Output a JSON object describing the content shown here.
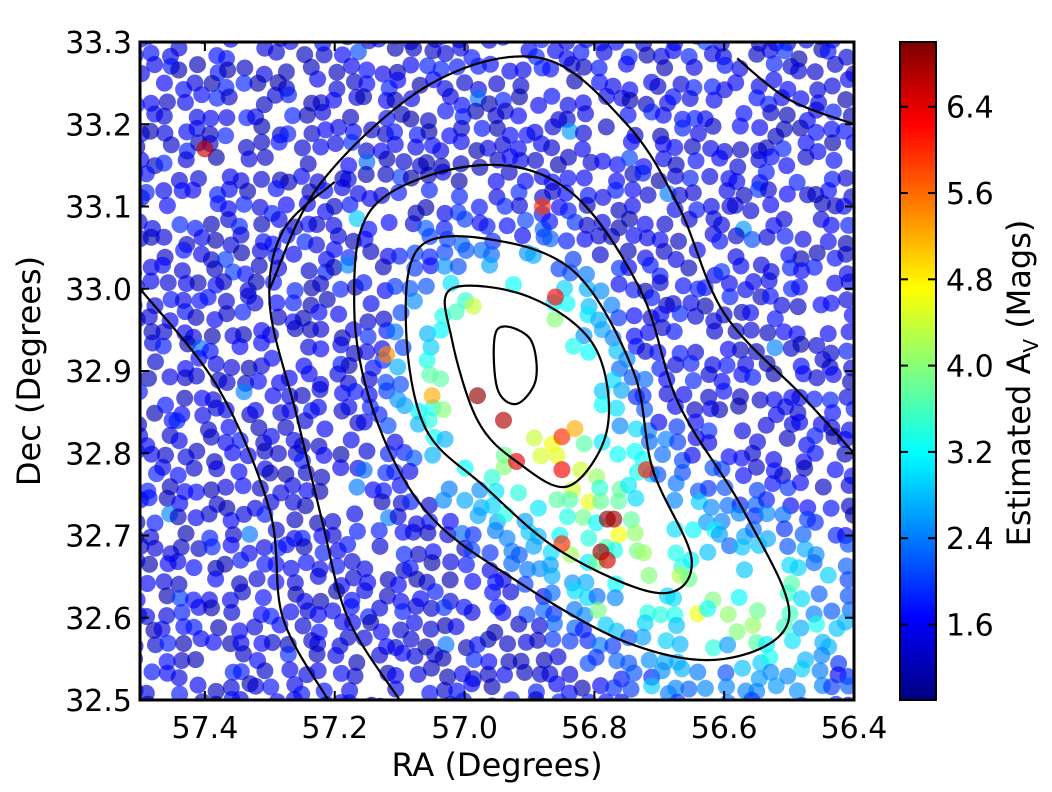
{
  "chart_data": {
    "type": "scatter",
    "title": "",
    "xlabel": "RA (Degrees)",
    "ylabel": "Dec (Degrees)",
    "xlim": [
      57.5,
      56.4
    ],
    "ylim": [
      32.5,
      33.3
    ],
    "x_inverted": true,
    "xticks": [
      "57.4",
      "57.2",
      "57.0",
      "56.8",
      "56.6",
      "56.4"
    ],
    "xtick_values": [
      57.4,
      57.2,
      57.0,
      56.8,
      56.6,
      56.4
    ],
    "yticks": [
      "33.3",
      "33.2",
      "33.1",
      "33.0",
      "32.9",
      "32.8",
      "32.7",
      "32.6",
      "32.5"
    ],
    "ytick_values": [
      33.3,
      33.2,
      33.1,
      33.0,
      32.9,
      32.8,
      32.7,
      32.6,
      32.5
    ],
    "colorbar": {
      "label": "Estimated A",
      "label_subscript": "V",
      "label_suffix": " (Mags)",
      "range": [
        0.9,
        7.0
      ],
      "ticks": [
        "6.4",
        "5.6",
        "4.8",
        "4.0",
        "3.2",
        "2.4",
        "1.6"
      ],
      "tick_values": [
        6.4,
        5.6,
        4.8,
        4.0,
        3.2,
        2.4,
        1.6
      ],
      "colormap": "jet",
      "colors": [
        "#00007f",
        "#0000ff",
        "#007fff",
        "#00ffff",
        "#7fff7f",
        "#ffff00",
        "#ff7f00",
        "#ff0000",
        "#7f0000"
      ]
    },
    "contour_center": {
      "ra": 56.93,
      "dec": 32.9
    },
    "contours": [
      [
        [
          56.95,
          32.95
        ],
        [
          56.9,
          32.94
        ],
        [
          56.89,
          32.89
        ],
        [
          56.92,
          32.86
        ],
        [
          56.95,
          32.88
        ]
      ],
      [
        [
          57.02,
          33.0
        ],
        [
          56.9,
          32.99
        ],
        [
          56.8,
          32.93
        ],
        [
          56.78,
          32.83
        ],
        [
          56.84,
          32.76
        ],
        [
          56.92,
          32.79
        ],
        [
          56.98,
          32.84
        ],
        [
          57.02,
          32.94
        ]
      ],
      [
        [
          57.07,
          33.05
        ],
        [
          56.96,
          33.06
        ],
        [
          56.83,
          33.02
        ],
        [
          56.74,
          32.9
        ],
        [
          56.71,
          32.78
        ],
        [
          56.65,
          32.67
        ],
        [
          56.7,
          32.63
        ],
        [
          56.85,
          32.68
        ],
        [
          56.97,
          32.76
        ],
        [
          57.06,
          32.83
        ],
        [
          57.09,
          32.95
        ]
      ],
      [
        [
          57.14,
          33.1
        ],
        [
          56.98,
          33.15
        ],
        [
          56.84,
          33.12
        ],
        [
          56.73,
          33.0
        ],
        [
          56.67,
          32.86
        ],
        [
          56.57,
          32.73
        ],
        [
          56.5,
          32.6
        ],
        [
          56.6,
          32.55
        ],
        [
          56.75,
          32.57
        ],
        [
          56.93,
          32.65
        ],
        [
          57.06,
          32.73
        ],
        [
          57.14,
          32.85
        ],
        [
          57.17,
          32.98
        ]
      ],
      [
        [
          57.3,
          33.0
        ],
        [
          57.22,
          33.13
        ],
        [
          57.05,
          33.25
        ],
        [
          56.88,
          33.28
        ],
        [
          56.75,
          33.2
        ],
        [
          56.67,
          33.1
        ],
        [
          56.6,
          32.97
        ],
        [
          56.48,
          32.87
        ],
        [
          56.4,
          32.8
        ]
      ],
      [
        [
          56.58,
          33.28
        ],
        [
          56.5,
          33.23
        ],
        [
          56.4,
          33.2
        ]
      ],
      [
        [
          57.5,
          33.0
        ],
        [
          57.38,
          32.88
        ],
        [
          57.3,
          32.73
        ],
        [
          57.28,
          32.6
        ],
        [
          57.21,
          32.5
        ]
      ],
      [
        [
          57.1,
          32.5
        ],
        [
          57.18,
          32.6
        ],
        [
          57.22,
          32.72
        ],
        [
          57.26,
          32.85
        ],
        [
          57.3,
          32.98
        ],
        [
          57.28,
          33.07
        ],
        [
          57.2,
          33.13
        ]
      ]
    ],
    "scatter_model": {
      "points_shown": "about 2400",
      "marker": "filled circle",
      "alpha": 0.65,
      "seed": 20240611,
      "cavity_center": {
        "ra": 56.94,
        "dec": 32.9
      },
      "ridge_points": [
        [
          56.93,
          32.9
        ],
        [
          56.87,
          32.81
        ],
        [
          56.78,
          32.71
        ],
        [
          56.66,
          32.63
        ],
        [
          56.55,
          32.61
        ]
      ],
      "bright_points": [
        {
          "ra": 57.4,
          "dec": 33.17,
          "av": 6.6
        },
        {
          "ra": 56.88,
          "dec": 33.1,
          "av": 5.9
        },
        {
          "ra": 56.86,
          "dec": 32.99,
          "av": 6.2
        },
        {
          "ra": 56.94,
          "dec": 32.84,
          "av": 6.7
        },
        {
          "ra": 56.92,
          "dec": 32.79,
          "av": 6.4
        },
        {
          "ra": 56.85,
          "dec": 32.82,
          "av": 6.0
        },
        {
          "ra": 56.83,
          "dec": 32.83,
          "av": 5.2
        },
        {
          "ra": 56.85,
          "dec": 32.78,
          "av": 6.3
        },
        {
          "ra": 56.72,
          "dec": 32.78,
          "av": 6.1
        },
        {
          "ra": 56.78,
          "dec": 32.72,
          "av": 6.9
        },
        {
          "ra": 56.77,
          "dec": 32.72,
          "av": 6.8
        },
        {
          "ra": 56.85,
          "dec": 32.69,
          "av": 6.0
        },
        {
          "ra": 56.79,
          "dec": 32.68,
          "av": 6.9
        },
        {
          "ra": 56.78,
          "dec": 32.67,
          "av": 6.5
        },
        {
          "ra": 57.12,
          "dec": 32.92,
          "av": 5.4
        },
        {
          "ra": 57.05,
          "dec": 32.87,
          "av": 5.2
        },
        {
          "ra": 56.98,
          "dec": 32.87,
          "av": 6.9
        }
      ]
    }
  }
}
